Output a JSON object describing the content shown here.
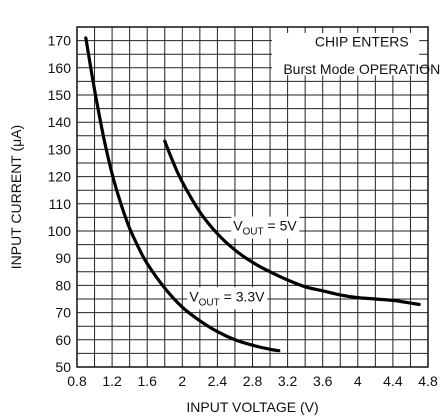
{
  "chart_data": {
    "type": "line",
    "xlabel": "INPUT VOLTAGE (V)",
    "ylabel": "INPUT CURRENT (μA)",
    "xlim": [
      0.8,
      4.8
    ],
    "ylim": [
      50,
      175
    ],
    "x_ticks": [
      0.8,
      1.2,
      1.6,
      2,
      2.4,
      2.8,
      3.2,
      3.6,
      4,
      4.4,
      4.8
    ],
    "y_ticks": [
      50,
      60,
      70,
      80,
      90,
      100,
      110,
      120,
      130,
      140,
      150,
      160,
      170
    ],
    "grid": true,
    "annotation": {
      "line1": "CHIP ENTERS",
      "line2": "Burst Mode OPERATION"
    },
    "series": [
      {
        "label_main": "V",
        "label_sub": "OUT",
        "label_value": " = 3.3V",
        "x": [
          0.9,
          1.0,
          1.1,
          1.2,
          1.3,
          1.4,
          1.5,
          1.6,
          1.8,
          2.0,
          2.2,
          2.4,
          2.6,
          2.8,
          3.0,
          3.1
        ],
        "y": [
          171,
          152,
          135,
          121,
          110,
          101,
          94,
          88,
          79,
          72,
          67,
          63,
          60,
          58,
          56.5,
          56
        ]
      },
      {
        "label_main": "V",
        "label_sub": "OUT",
        "label_value": " = 5V",
        "x": [
          1.8,
          1.9,
          2.0,
          2.2,
          2.4,
          2.6,
          2.8,
          3.0,
          3.2,
          3.4,
          3.6,
          3.8,
          4.0,
          4.2,
          4.4,
          4.6,
          4.7
        ],
        "y": [
          133,
          125,
          118,
          107,
          99,
          93,
          88.5,
          85,
          82,
          79.5,
          78,
          76.5,
          75.5,
          75,
          74.5,
          73.5,
          73
        ]
      }
    ]
  }
}
